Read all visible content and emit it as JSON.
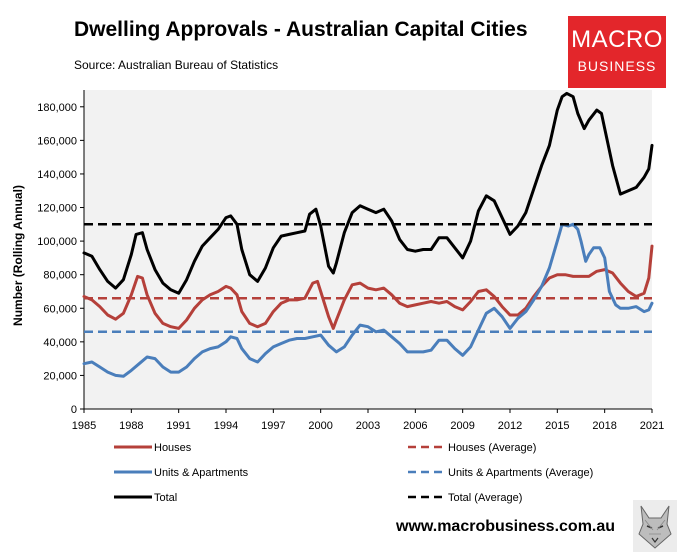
{
  "header": {
    "title": "Dwelling Approvals - Australian Capital Cities",
    "source": "Source: Australian Bureau of Statistics"
  },
  "logo": {
    "line1": "MACRO",
    "line2": "BUSINESS"
  },
  "footer": {
    "url": "www.macrobusiness.com.au"
  },
  "colors": {
    "houses": "#b5403a",
    "units": "#4a7ebb",
    "total": "#000000",
    "plot_bg": "#f2f2f2"
  },
  "chart_data": {
    "type": "line",
    "title": "Dwelling Approvals - Australian Capital Cities",
    "ylabel": "Number (Rolling Annual)",
    "xlabel": "",
    "xlim": [
      1985,
      2021
    ],
    "ylim": [
      0,
      190000
    ],
    "x_ticks": [
      1985,
      1988,
      1991,
      1994,
      1997,
      2000,
      2003,
      2006,
      2009,
      2012,
      2015,
      2018,
      2021
    ],
    "y_ticks": [
      0,
      20000,
      40000,
      60000,
      80000,
      100000,
      120000,
      140000,
      160000,
      180000
    ],
    "y_tick_labels": [
      "0",
      "20,000",
      "40,000",
      "60,000",
      "80,000",
      "100,000",
      "120,000",
      "140,000",
      "160,000",
      "180,000"
    ],
    "grid": false,
    "legend_position": "bottom",
    "series": [
      {
        "name": "Houses",
        "color": "#b5403a",
        "dash": false,
        "points": [
          [
            1985,
            67000
          ],
          [
            1985.5,
            65000
          ],
          [
            1986,
            61000
          ],
          [
            1986.5,
            56000
          ],
          [
            1987,
            53500
          ],
          [
            1987.5,
            57000
          ],
          [
            1988,
            68000
          ],
          [
            1988.4,
            79000
          ],
          [
            1988.7,
            78000
          ],
          [
            1989,
            68000
          ],
          [
            1989.5,
            57000
          ],
          [
            1990,
            51000
          ],
          [
            1990.5,
            49000
          ],
          [
            1991,
            48000
          ],
          [
            1991.5,
            53000
          ],
          [
            1992,
            60000
          ],
          [
            1992.5,
            65000
          ],
          [
            1993,
            68000
          ],
          [
            1993.5,
            70000
          ],
          [
            1994,
            73000
          ],
          [
            1994.3,
            72000
          ],
          [
            1994.7,
            68000
          ],
          [
            1995,
            58000
          ],
          [
            1995.5,
            51000
          ],
          [
            1996,
            49000
          ],
          [
            1996.5,
            51000
          ],
          [
            1997,
            58000
          ],
          [
            1997.5,
            63000
          ],
          [
            1998,
            65000
          ],
          [
            1998.5,
            65000
          ],
          [
            1999,
            66000
          ],
          [
            1999.5,
            75000
          ],
          [
            1999.8,
            76000
          ],
          [
            2000,
            70000
          ],
          [
            2000.5,
            55000
          ],
          [
            2000.8,
            48000
          ],
          [
            2001,
            53000
          ],
          [
            2001.5,
            65000
          ],
          [
            2002,
            74000
          ],
          [
            2002.5,
            75000
          ],
          [
            2003,
            72000
          ],
          [
            2003.5,
            71000
          ],
          [
            2004,
            72000
          ],
          [
            2004.5,
            68000
          ],
          [
            2005,
            63000
          ],
          [
            2005.5,
            61000
          ],
          [
            2006,
            62000
          ],
          [
            2006.5,
            63000
          ],
          [
            2007,
            64000
          ],
          [
            2007.5,
            63000
          ],
          [
            2008,
            64000
          ],
          [
            2008.5,
            61000
          ],
          [
            2009,
            59000
          ],
          [
            2009.5,
            64000
          ],
          [
            2010,
            70000
          ],
          [
            2010.5,
            71000
          ],
          [
            2011,
            67000
          ],
          [
            2011.5,
            61000
          ],
          [
            2012,
            56000
          ],
          [
            2012.5,
            56000
          ],
          [
            2013,
            60000
          ],
          [
            2013.5,
            67000
          ],
          [
            2014,
            73000
          ],
          [
            2014.5,
            78000
          ],
          [
            2015,
            80000
          ],
          [
            2015.5,
            80000
          ],
          [
            2016,
            79000
          ],
          [
            2016.5,
            79000
          ],
          [
            2017,
            79000
          ],
          [
            2017.5,
            82000
          ],
          [
            2018,
            83000
          ],
          [
            2018.5,
            81000
          ],
          [
            2019,
            75000
          ],
          [
            2019.5,
            70000
          ],
          [
            2020,
            67000
          ],
          [
            2020.5,
            69000
          ],
          [
            2020.8,
            78000
          ],
          [
            2021,
            97000
          ]
        ]
      },
      {
        "name": "Houses (Average)",
        "color": "#b5403a",
        "dash": true,
        "points": [
          [
            1985,
            66000
          ],
          [
            2021,
            66000
          ]
        ]
      },
      {
        "name": "Units & Apartments",
        "color": "#4a7ebb",
        "dash": false,
        "points": [
          [
            1985,
            27000
          ],
          [
            1985.5,
            28000
          ],
          [
            1986,
            25000
          ],
          [
            1986.5,
            22000
          ],
          [
            1987,
            20000
          ],
          [
            1987.5,
            19500
          ],
          [
            1988,
            23000
          ],
          [
            1988.5,
            27000
          ],
          [
            1989,
            31000
          ],
          [
            1989.5,
            30000
          ],
          [
            1990,
            25000
          ],
          [
            1990.5,
            22000
          ],
          [
            1991,
            22000
          ],
          [
            1991.5,
            25000
          ],
          [
            1992,
            30000
          ],
          [
            1992.5,
            34000
          ],
          [
            1993,
            36000
          ],
          [
            1993.5,
            37000
          ],
          [
            1994,
            40000
          ],
          [
            1994.3,
            43000
          ],
          [
            1994.7,
            42000
          ],
          [
            1995,
            36000
          ],
          [
            1995.5,
            30000
          ],
          [
            1996,
            28000
          ],
          [
            1996.5,
            33000
          ],
          [
            1997,
            37000
          ],
          [
            1997.5,
            39000
          ],
          [
            1998,
            41000
          ],
          [
            1998.5,
            42000
          ],
          [
            1999,
            42000
          ],
          [
            1999.5,
            43000
          ],
          [
            2000,
            44000
          ],
          [
            2000.5,
            38000
          ],
          [
            2001,
            34000
          ],
          [
            2001.5,
            37000
          ],
          [
            2002,
            44000
          ],
          [
            2002.5,
            50000
          ],
          [
            2003,
            49000
          ],
          [
            2003.5,
            46000
          ],
          [
            2004,
            47000
          ],
          [
            2004.5,
            43000
          ],
          [
            2005,
            39000
          ],
          [
            2005.5,
            34000
          ],
          [
            2006,
            34000
          ],
          [
            2006.5,
            34000
          ],
          [
            2007,
            35000
          ],
          [
            2007.5,
            41000
          ],
          [
            2008,
            41000
          ],
          [
            2008.5,
            36000
          ],
          [
            2009,
            32000
          ],
          [
            2009.5,
            37000
          ],
          [
            2010,
            47000
          ],
          [
            2010.5,
            57000
          ],
          [
            2011,
            60000
          ],
          [
            2011.5,
            55000
          ],
          [
            2012,
            48000
          ],
          [
            2012.5,
            54000
          ],
          [
            2013,
            58000
          ],
          [
            2013.5,
            65000
          ],
          [
            2014,
            73000
          ],
          [
            2014.5,
            84000
          ],
          [
            2015,
            100000
          ],
          [
            2015.3,
            110000
          ],
          [
            2015.7,
            109000
          ],
          [
            2016,
            110000
          ],
          [
            2016.3,
            107000
          ],
          [
            2016.5,
            100000
          ],
          [
            2016.8,
            88000
          ],
          [
            2017,
            92000
          ],
          [
            2017.3,
            96000
          ],
          [
            2017.7,
            96000
          ],
          [
            2018,
            90000
          ],
          [
            2018.3,
            70000
          ],
          [
            2018.7,
            62000
          ],
          [
            2019,
            60000
          ],
          [
            2019.5,
            60000
          ],
          [
            2020,
            61000
          ],
          [
            2020.5,
            58000
          ],
          [
            2020.8,
            59000
          ],
          [
            2021,
            63000
          ]
        ]
      },
      {
        "name": "Units & Apartments (Average)",
        "color": "#4a7ebb",
        "dash": true,
        "points": [
          [
            1985,
            46000
          ],
          [
            2021,
            46000
          ]
        ]
      },
      {
        "name": "Total",
        "color": "#000000",
        "dash": false,
        "points": [
          [
            1985,
            93000
          ],
          [
            1985.5,
            91000
          ],
          [
            1986,
            83000
          ],
          [
            1986.5,
            76000
          ],
          [
            1987,
            72000
          ],
          [
            1987.5,
            77000
          ],
          [
            1988,
            92000
          ],
          [
            1988.3,
            104000
          ],
          [
            1988.7,
            105000
          ],
          [
            1989,
            95000
          ],
          [
            1989.5,
            83000
          ],
          [
            1990,
            75000
          ],
          [
            1990.5,
            71000
          ],
          [
            1991,
            69000
          ],
          [
            1991.5,
            77000
          ],
          [
            1992,
            88000
          ],
          [
            1992.5,
            97000
          ],
          [
            1993,
            102000
          ],
          [
            1993.5,
            107000
          ],
          [
            1994,
            114000
          ],
          [
            1994.3,
            115000
          ],
          [
            1994.7,
            110000
          ],
          [
            1995,
            95000
          ],
          [
            1995.5,
            80000
          ],
          [
            1996,
            76000
          ],
          [
            1996.5,
            84000
          ],
          [
            1997,
            96000
          ],
          [
            1997.5,
            103000
          ],
          [
            1998,
            104000
          ],
          [
            1998.5,
            105000
          ],
          [
            1999,
            106000
          ],
          [
            1999.3,
            116000
          ],
          [
            1999.7,
            119000
          ],
          [
            2000,
            109000
          ],
          [
            2000.5,
            85000
          ],
          [
            2000.8,
            81000
          ],
          [
            2001,
            87000
          ],
          [
            2001.5,
            105000
          ],
          [
            2002,
            117000
          ],
          [
            2002.5,
            121000
          ],
          [
            2003,
            119000
          ],
          [
            2003.5,
            117000
          ],
          [
            2004,
            119000
          ],
          [
            2004.5,
            112000
          ],
          [
            2005,
            101000
          ],
          [
            2005.5,
            95000
          ],
          [
            2006,
            94000
          ],
          [
            2006.5,
            95000
          ],
          [
            2007,
            95000
          ],
          [
            2007.5,
            102000
          ],
          [
            2008,
            102000
          ],
          [
            2008.5,
            96000
          ],
          [
            2009,
            90000
          ],
          [
            2009.5,
            100000
          ],
          [
            2010,
            118000
          ],
          [
            2010.5,
            127000
          ],
          [
            2011,
            124000
          ],
          [
            2011.5,
            114000
          ],
          [
            2012,
            104000
          ],
          [
            2012.5,
            109000
          ],
          [
            2013,
            117000
          ],
          [
            2013.5,
            131000
          ],
          [
            2014,
            145000
          ],
          [
            2014.5,
            157000
          ],
          [
            2015,
            178000
          ],
          [
            2015.3,
            186000
          ],
          [
            2015.6,
            188000
          ],
          [
            2016,
            186000
          ],
          [
            2016.3,
            176000
          ],
          [
            2016.7,
            167000
          ],
          [
            2017,
            172000
          ],
          [
            2017.5,
            178000
          ],
          [
            2017.8,
            176000
          ],
          [
            2018,
            167000
          ],
          [
            2018.5,
            145000
          ],
          [
            2019,
            128000
          ],
          [
            2019.5,
            130000
          ],
          [
            2020,
            132000
          ],
          [
            2020.5,
            138000
          ],
          [
            2020.8,
            143000
          ],
          [
            2021,
            157000
          ]
        ]
      },
      {
        "name": "Total (Average)",
        "color": "#000000",
        "dash": true,
        "points": [
          [
            1985,
            110000
          ],
          [
            2021,
            110000
          ]
        ]
      }
    ],
    "legend": [
      {
        "label": "Houses",
        "color": "#b5403a",
        "dash": false
      },
      {
        "label": "Houses (Average)",
        "color": "#b5403a",
        "dash": true
      },
      {
        "label": "Units & Apartments",
        "color": "#4a7ebb",
        "dash": false
      },
      {
        "label": "Units & Apartments (Average)",
        "color": "#4a7ebb",
        "dash": true
      },
      {
        "label": "Total",
        "color": "#000000",
        "dash": false
      },
      {
        "label": "Total (Average)",
        "color": "#000000",
        "dash": true
      }
    ]
  }
}
